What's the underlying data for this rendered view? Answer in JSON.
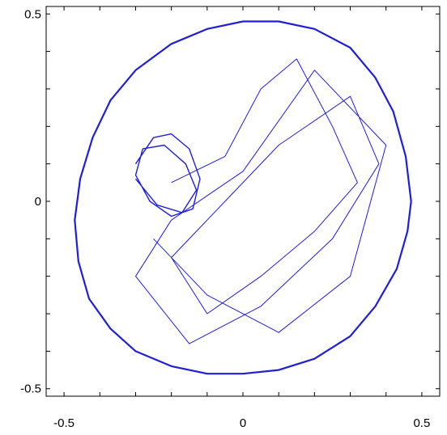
{
  "chart_data": {
    "type": "line",
    "title": "",
    "xlabel": "",
    "ylabel": "",
    "xlim": [
      -0.55,
      0.55
    ],
    "ylim": [
      -0.52,
      0.52
    ],
    "x_ticks": [
      {
        "value": -0.5,
        "label": "-0.5"
      },
      {
        "value": 0,
        "label": "0"
      },
      {
        "value": 0.5,
        "label": "0.5"
      }
    ],
    "y_ticks": [
      {
        "value": 0.5,
        "label": "0.5"
      },
      {
        "value": 0,
        "label": "0"
      },
      {
        "value": -0.5,
        "label": "-0.5"
      }
    ],
    "grid": false,
    "legend": "none",
    "line_color": "#1f1fd8",
    "series": [
      {
        "description": "trajectory ring along arena wall",
        "x": [
          0.47,
          0.455,
          0.42,
          0.37,
          0.3,
          0.2,
          0.1,
          0.0,
          -0.1,
          -0.2,
          -0.3,
          -0.37,
          -0.42,
          -0.455,
          -0.47,
          -0.46,
          -0.43,
          -0.37,
          -0.3,
          -0.2,
          -0.1,
          0.0,
          0.1,
          0.2,
          0.3,
          0.37,
          0.43,
          0.46,
          0.47
        ],
        "y": [
          0.0,
          0.12,
          0.24,
          0.33,
          0.41,
          0.46,
          0.48,
          0.48,
          0.46,
          0.42,
          0.35,
          0.27,
          0.17,
          0.06,
          -0.05,
          -0.16,
          -0.26,
          -0.34,
          -0.4,
          -0.44,
          -0.46,
          -0.46,
          -0.45,
          -0.42,
          -0.36,
          -0.28,
          -0.18,
          -0.08,
          0.0
        ]
      },
      {
        "description": "trajectory loops near center-left",
        "x": [
          -0.3,
          -0.25,
          -0.2,
          -0.15,
          -0.12,
          -0.14,
          -0.2,
          -0.26,
          -0.3,
          -0.28,
          -0.22,
          -0.16,
          -0.13,
          -0.17,
          -0.24,
          -0.3
        ],
        "y": [
          0.1,
          0.17,
          0.18,
          0.14,
          0.06,
          -0.02,
          -0.04,
          0.0,
          0.07,
          0.14,
          0.15,
          0.1,
          0.03,
          -0.03,
          -0.01,
          0.06
        ]
      },
      {
        "description": "trajectory crossings through interior",
        "x": [
          -0.2,
          -0.05,
          0.05,
          0.15,
          0.25,
          0.32,
          0.2,
          0.05,
          -0.1,
          -0.2,
          -0.05,
          0.1,
          0.3,
          0.38,
          0.25,
          0.05,
          -0.15,
          -0.3,
          -0.2,
          0.0,
          0.2,
          0.4,
          0.3,
          0.1,
          -0.1,
          -0.25
        ],
        "y": [
          0.05,
          0.12,
          0.3,
          0.38,
          0.2,
          0.05,
          -0.08,
          -0.2,
          -0.3,
          -0.15,
          0.0,
          0.15,
          0.28,
          0.1,
          -0.1,
          -0.28,
          -0.38,
          -0.2,
          -0.05,
          0.08,
          0.35,
          0.15,
          -0.2,
          -0.35,
          -0.25,
          -0.1
        ]
      }
    ]
  }
}
